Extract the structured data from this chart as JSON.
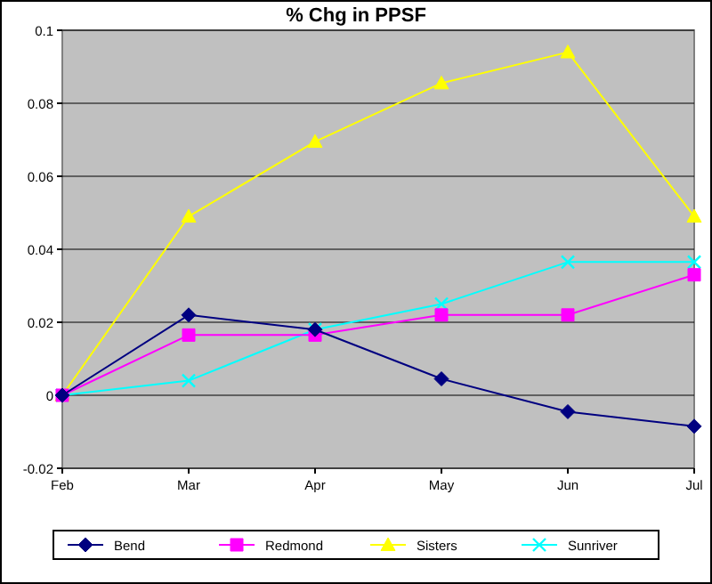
{
  "chart_data": {
    "type": "line",
    "title": "% Chg in PPSF",
    "categories": [
      "Feb",
      "Mar",
      "Apr",
      "May",
      "Jun",
      "Jul"
    ],
    "series": [
      {
        "name": "Bend",
        "color": "#000080",
        "marker": "diamond",
        "values": [
          0,
          0.022,
          0.018,
          0.0045,
          -0.0045,
          -0.0085
        ]
      },
      {
        "name": "Redmond",
        "color": "#ff00ff",
        "marker": "square",
        "values": [
          0,
          0.0165,
          0.0165,
          0.022,
          0.022,
          0.033
        ]
      },
      {
        "name": "Sisters",
        "color": "#ffff00",
        "marker": "triangle",
        "values": [
          0,
          0.049,
          0.0695,
          0.0855,
          0.094,
          0.049
        ]
      },
      {
        "name": "Sunriver",
        "color": "#00ffff",
        "marker": "cross",
        "values": [
          0,
          0.004,
          0.018,
          0.025,
          0.0365,
          0.0365
        ]
      }
    ],
    "ylim": [
      -0.02,
      0.1
    ],
    "yticks": [
      -0.02,
      0,
      0.02,
      0.04,
      0.06,
      0.08,
      0.1
    ],
    "grid": "y",
    "legend": "bottom"
  }
}
